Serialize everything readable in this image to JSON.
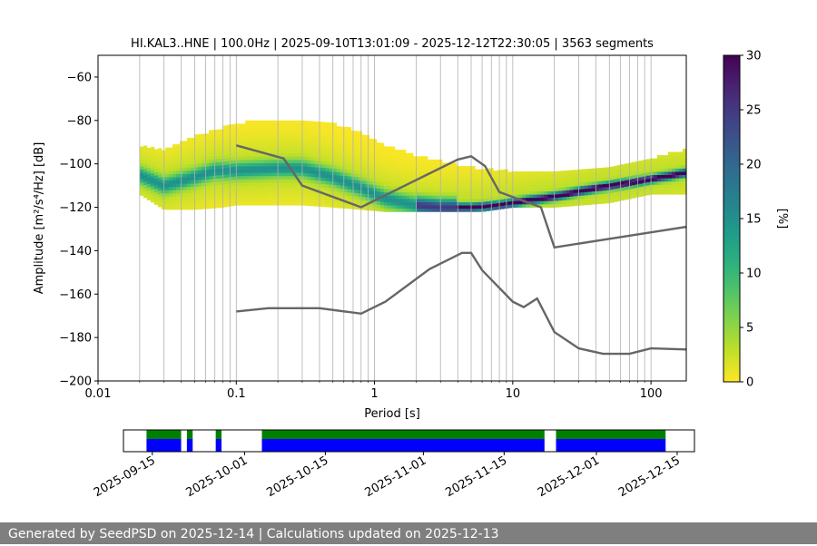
{
  "title": "HI.KAL3..HNE | 100.0Hz | 2025-09-10T13:01:09 - 2025-12-12T22:30:05 | 3563 segments",
  "footer": "Generated by SeedPSD on 2025-12-14 | Calculations updated on 2025-12-13",
  "chart_data": [
    {
      "type": "heatmap",
      "title": "HI.KAL3..HNE | 100.0Hz | 2025-09-10T13:01:09 - 2025-12-12T22:30:05 | 3563 segments",
      "xlabel": "Period [s]",
      "ylabel": "Amplitude [m²/s⁴/Hz] [dB]",
      "xscale": "log",
      "xlim": [
        0.01,
        180
      ],
      "ylim": [
        -200,
        -50
      ],
      "xticks": [
        0.01,
        0.1,
        1,
        10,
        100
      ],
      "xtick_labels": [
        "0.01",
        "0.1",
        "1",
        "10",
        "100"
      ],
      "yticks": [
        -200,
        -180,
        -160,
        -140,
        -120,
        -100,
        -80,
        -60
      ],
      "ytick_labels": [
        "−200",
        "−180",
        "−160",
        "−140",
        "−120",
        "−100",
        "−80",
        "−60"
      ],
      "grid": "vertical",
      "colorbar": {
        "label": "[%]",
        "range": [
          0,
          30
        ],
        "ticks": [
          0,
          5,
          10,
          15,
          20,
          25,
          30
        ],
        "colormap": "viridis_r"
      },
      "pdf_mode": {
        "x": [
          0.02,
          0.03,
          0.05,
          0.07,
          0.1,
          0.2,
          0.3,
          0.5,
          0.8,
          1.2,
          2,
          3,
          5,
          8,
          12,
          20,
          40,
          80,
          180
        ],
        "y": [
          -105,
          -110,
          -106,
          -103,
          -103,
          -102,
          -102,
          -106,
          -111,
          -116,
          -119,
          -120,
          -120,
          -119,
          -117,
          -115,
          -111,
          -108,
          -104
        ]
      },
      "pdf_spread": {
        "x": [
          0.02,
          0.03,
          0.05,
          0.08,
          0.1,
          0.2,
          0.3,
          0.5,
          0.8,
          1.2,
          2,
          4,
          6,
          10,
          20,
          50,
          100,
          180
        ],
        "upper": [
          -92,
          -94,
          -88,
          -84,
          -82,
          -80,
          -80,
          -82,
          -86,
          -92,
          -97,
          -101,
          -103,
          -104,
          -104,
          -102,
          -98,
          -94
        ],
        "lower": [
          -114,
          -121,
          -121,
          -120,
          -119,
          -119,
          -119,
          -120,
          -121,
          -122,
          -122,
          -122,
          -122,
          -120,
          -120,
          -118,
          -114,
          -114
        ]
      },
      "series": [
        {
          "name": "",
          "x": [
            0.1,
            0.22,
            0.3,
            0.8,
            4,
            5,
            6.3,
            8,
            16,
            20,
            180
          ],
          "y": [
            -91.5,
            -97.5,
            -110,
            -120,
            -98,
            -96.5,
            -101,
            -113,
            -120,
            -138.5,
            -129
          ]
        },
        {
          "name": "",
          "x": [
            0.1,
            0.17,
            0.4,
            0.8,
            1.2,
            2.5,
            4.3,
            5,
            6,
            10,
            12,
            15,
            20,
            30,
            45,
            70,
            100,
            180
          ],
          "y": [
            -168,
            -166.5,
            -166.5,
            -169,
            -163.5,
            -148.5,
            -141,
            -141,
            -149,
            -163.5,
            -166,
            -162,
            -177.5,
            -185,
            -187.5,
            -187.5,
            -185,
            -185.5
          ]
        }
      ]
    },
    {
      "type": "timeline",
      "xlim": [
        "2025-09-10",
        "2025-12-18"
      ],
      "xticks": [
        "2025-09-15",
        "2025-10-01",
        "2025-10-15",
        "2025-11-01",
        "2025-11-15",
        "2025-12-01",
        "2025-12-15"
      ],
      "colors": {
        "available": "#008000",
        "processed": "#0000ff"
      },
      "segments": [
        [
          "2025-09-14",
          "2025-09-20"
        ],
        [
          "2025-09-21",
          "2025-09-22"
        ],
        [
          "2025-09-26",
          "2025-09-27"
        ],
        [
          "2025-10-04",
          "2025-11-22"
        ],
        [
          "2025-11-24",
          "2025-12-13"
        ]
      ]
    }
  ]
}
